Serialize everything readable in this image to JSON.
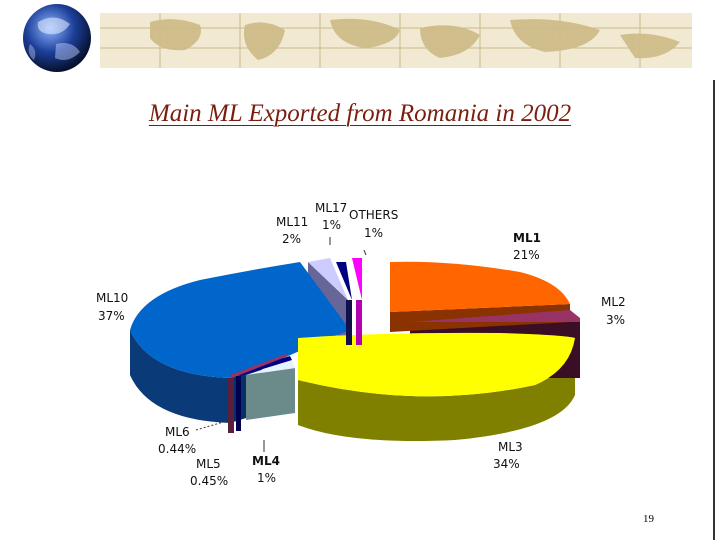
{
  "slide": {
    "title": "Main ML Exported from Romania in 2002",
    "page_number": "19"
  },
  "colors": {
    "title_text": "#7a1f10",
    "banner_bg": "#f2e9d2",
    "map_lines": "#c9b98c"
  },
  "chart_data": {
    "type": "pie",
    "style": "3d-exploded",
    "title": "Main ML Exported from Romania in 2002",
    "slices": [
      {
        "label": "ML1",
        "value_label": "21%",
        "value": 21,
        "color": "#ff6600",
        "bold": true
      },
      {
        "label": "ML2",
        "value_label": "3%",
        "value": 3,
        "color": "#993366"
      },
      {
        "label": "ML3",
        "value_label": "34%",
        "value": 34,
        "color": "#ffff00"
      },
      {
        "label": "ML4",
        "value_label": "1%",
        "value": 1,
        "color": "#e6f2ff",
        "bold": true
      },
      {
        "label": "ML5",
        "value_label": "0.45%",
        "value": 0.45,
        "color": "#000080"
      },
      {
        "label": "ML6",
        "value_label": "0.44%",
        "value": 0.44,
        "color": "#993366"
      },
      {
        "label": "ML10",
        "value_label": "37%",
        "value": 37,
        "color": "#0066cc"
      },
      {
        "label": "ML11",
        "value_label": "2%",
        "value": 2,
        "color": "#ccccff"
      },
      {
        "label": "ML17",
        "value_label": "1%",
        "value": 1,
        "color": "#000080"
      },
      {
        "label": "OTHERS",
        "value_label": "1%",
        "value": 1,
        "color": "#ff00ff"
      }
    ]
  }
}
